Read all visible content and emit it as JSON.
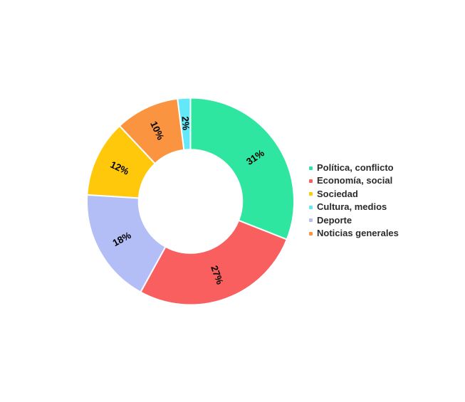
{
  "chart_data": {
    "type": "pie",
    "subtype": "donut",
    "hole_ratio": 0.5,
    "rotation_deg": 0,
    "direction": "clockwise",
    "unit": "%",
    "title": "",
    "legend_position": "right",
    "background_color": "#ffffff",
    "slice_border_color": "#ffffff",
    "slice_label_color": "#000000",
    "legend_text_color": "#2b2b2b",
    "series": [
      {
        "label": "Política, conflicto",
        "value": 31,
        "display": "31%",
        "color": "#2ee6a0"
      },
      {
        "label": "Economía, social",
        "value": 27,
        "display": "27%",
        "color": "#f95f5f"
      },
      {
        "label": "Sociedad",
        "value": 12,
        "display": "12%",
        "color": "#ffc80a"
      },
      {
        "label": "Cultura, medios",
        "value": 2,
        "display": "2%",
        "color": "#63e8fa"
      },
      {
        "label": "Deporte",
        "value": 18,
        "display": "18%",
        "color": "#b3bef7"
      },
      {
        "label": "Noticias generales",
        "value": 10,
        "display": "10%",
        "color": "#fb9441"
      }
    ],
    "draw_order_clockwise": [
      "Política, conflicto",
      "Economía, social",
      "Deporte",
      "Sociedad",
      "Noticias generales",
      "Cultura, medios"
    ]
  }
}
